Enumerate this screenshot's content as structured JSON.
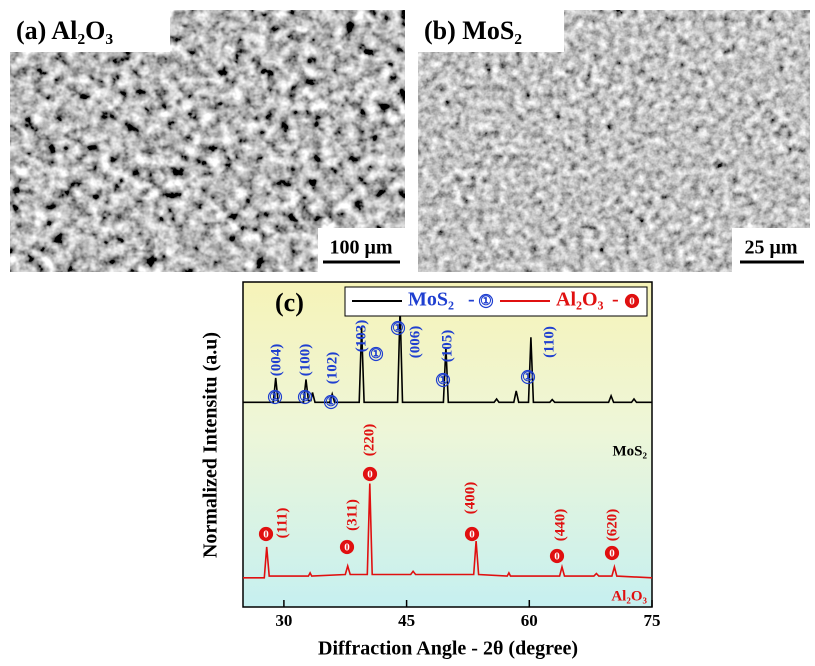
{
  "images": [
    {
      "label": "(a) Al₂O₃",
      "scale_bar": "100 μm"
    },
    {
      "label": "(b) MoS₂",
      "scale_bar": "25 μm"
    }
  ],
  "chart_data": {
    "type": "line",
    "panel_label": "(c)",
    "x_label": "Diffraction Angle - 2θ (degree)",
    "y_label": "Normalized Intensitu (a.u)",
    "xlim": [
      25,
      75
    ],
    "xticks": [
      30,
      45,
      60,
      75
    ],
    "ylim": [
      0,
      100
    ],
    "series": [
      {
        "name": "MoS₂",
        "marker_label": "①",
        "color": "#000000",
        "marker_color": "#1f3fd0",
        "x": [
          25,
          28.7,
          29.0,
          29.3,
          32.4,
          32.7,
          33.0,
          33.3,
          33.5,
          33.8,
          35.6,
          35.9,
          36.2,
          39.2,
          39.5,
          39.8,
          43.9,
          44.2,
          44.5,
          49.5,
          49.8,
          50.1,
          55.7,
          56,
          56.3,
          58.1,
          58.4,
          58.7,
          59.9,
          60.2,
          60.5,
          62.5,
          62.8,
          63.1,
          69.7,
          70,
          70.3,
          72.5,
          72.8,
          73.1,
          75
        ],
        "values": [
          63,
          63,
          70.5,
          63,
          63,
          70,
          63.5,
          63.5,
          66,
          63,
          63,
          65.5,
          63,
          63,
          86,
          63,
          63,
          92,
          63,
          63,
          80,
          63,
          63,
          64,
          63,
          63,
          66.5,
          63,
          63,
          83,
          63,
          63,
          63.8,
          63,
          63,
          65,
          63,
          63,
          64,
          63,
          63
        ],
        "peaks": [
          "(004)",
          "(100)",
          "(102)",
          "(103)",
          "(006)",
          "(105)",
          "(110)"
        ]
      },
      {
        "name": "Al₂O₃",
        "marker_label": "0",
        "color": "#e01010",
        "marker_color": "#e01010",
        "x": [
          25,
          27.6,
          27.9,
          28.2,
          33,
          33.2,
          33.4,
          37.5,
          37.8,
          38.1,
          40.2,
          40.5,
          40.8,
          45.5,
          45.8,
          46.1,
          53.2,
          53.5,
          53.8,
          57.3,
          57.5,
          57.7,
          63.7,
          64,
          64.3,
          67.9,
          68.2,
          68.5,
          70.1,
          70.4,
          70.7,
          75
        ],
        "values": [
          9,
          9,
          18.5,
          9.5,
          9.5,
          10.5,
          9.5,
          10,
          12.6,
          10,
          10,
          38,
          10,
          10,
          11,
          10,
          10,
          20.3,
          10,
          9.5,
          10.5,
          9.5,
          9.5,
          12.3,
          9.5,
          9.5,
          10.3,
          9.5,
          9.5,
          12.3,
          9.5,
          9
        ],
        "peaks": [
          "(111)",
          "(311)",
          "(220)",
          "(400)",
          "(440)",
          "(620)"
        ]
      }
    ]
  }
}
